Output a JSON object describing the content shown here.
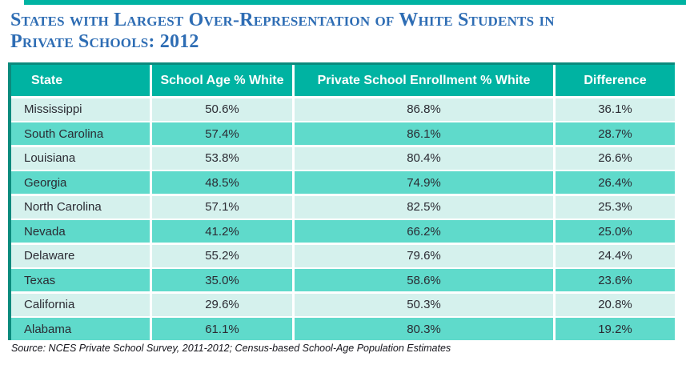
{
  "colors": {
    "header_teal": "#00B3A2",
    "row_light": "#D5F1ED",
    "row_medium": "#5FDACB",
    "accent_dark": "#0B8A7D",
    "title_blue": "#2E6DB4"
  },
  "chart_data": {
    "type": "table",
    "title": "States with Largest Over-Representation of White Students in Private Schools: 2012",
    "title_line1": "States with Largest Over-Representation of White Students in",
    "title_line2": "Private Schools: 2012",
    "columns": [
      "State",
      "School Age % White",
      "Private School Enrollment % White",
      "Difference"
    ],
    "rows": [
      {
        "state": "Mississippi",
        "school_age": "50.6%",
        "enrollment": "86.8%",
        "difference": "36.1%"
      },
      {
        "state": "South Carolina",
        "school_age": "57.4%",
        "enrollment": "86.1%",
        "difference": "28.7%"
      },
      {
        "state": "Louisiana",
        "school_age": "53.8%",
        "enrollment": "80.4%",
        "difference": "26.6%"
      },
      {
        "state": "Georgia",
        "school_age": "48.5%",
        "enrollment": "74.9%",
        "difference": "26.4%"
      },
      {
        "state": "North Carolina",
        "school_age": "57.1%",
        "enrollment": "82.5%",
        "difference": "25.3%"
      },
      {
        "state": "Nevada",
        "school_age": "41.2%",
        "enrollment": "66.2%",
        "difference": "25.0%"
      },
      {
        "state": "Delaware",
        "school_age": "55.2%",
        "enrollment": "79.6%",
        "difference": "24.4%"
      },
      {
        "state": "Texas",
        "school_age": "35.0%",
        "enrollment": "58.6%",
        "difference": "23.6%"
      },
      {
        "state": "California",
        "school_age": "29.6%",
        "enrollment": "50.3%",
        "difference": "20.8%"
      },
      {
        "state": "Alabama",
        "school_age": "61.1%",
        "enrollment": "80.3%",
        "difference": "19.2%"
      }
    ],
    "source": "Source: NCES Private School Survey, 2011-2012; Census-based School-Age Population Estimates"
  }
}
